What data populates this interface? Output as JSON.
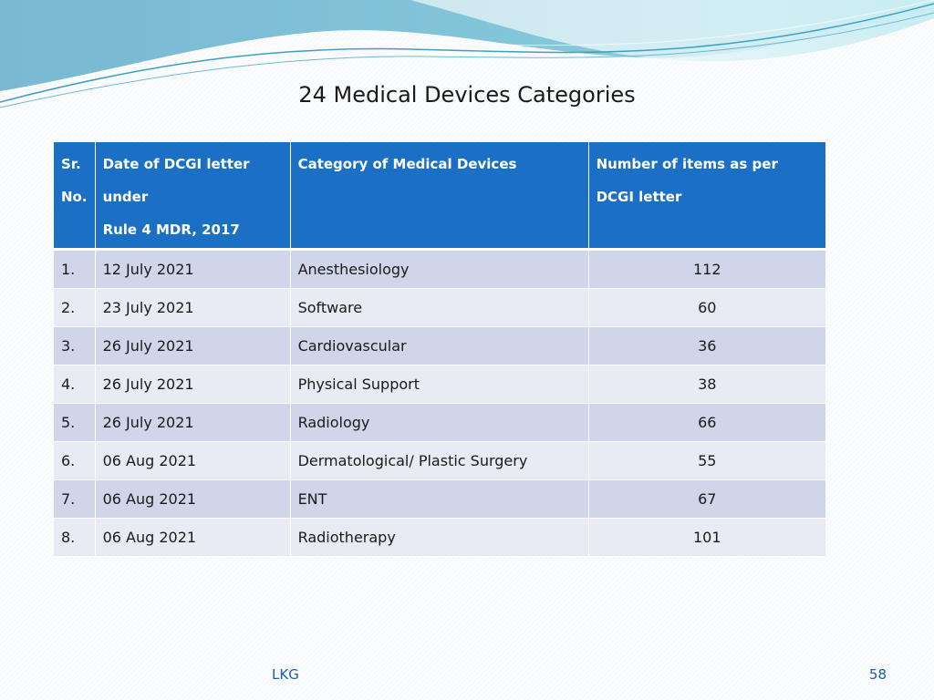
{
  "slide": {
    "title": "24 Medical Devices Categories"
  },
  "table": {
    "headers": {
      "sr_line1": "Sr.",
      "sr_line2": "No.",
      "date_line1": "Date of DCGI letter under",
      "date_line2": "Rule 4 MDR, 2017",
      "category": "Category of Medical Devices",
      "items_line1": "Number of items as per",
      "items_line2": "DCGI letter"
    },
    "rows": [
      {
        "sr": "1.",
        "date": "12 July 2021",
        "category": "Anesthesiology",
        "items": "112"
      },
      {
        "sr": "2.",
        "date": "23 July 2021",
        "category": "Software",
        "items": "60"
      },
      {
        "sr": "3.",
        "date": "26 July 2021",
        "category": "Cardiovascular",
        "items": "36"
      },
      {
        "sr": "4.",
        "date": "26 July 2021",
        "category": "Physical Support",
        "items": "38"
      },
      {
        "sr": "5.",
        "date": "26 July 2021",
        "category": "Radiology",
        "items": "66"
      },
      {
        "sr": "6.",
        "date": "06 Aug 2021",
        "category": "Dermatological/ Plastic Surgery",
        "items": "55"
      },
      {
        "sr": "7.",
        "date": "06 Aug 2021",
        "category": "ENT",
        "items": "67"
      },
      {
        "sr": "8.",
        "date": "06 Aug 2021",
        "category": "Radiotherapy",
        "items": "101"
      }
    ]
  },
  "footer": {
    "author": "LKG",
    "page_number": "58"
  },
  "colors": {
    "header_bg": "#1b70c6",
    "row_odd": "#cfd6e9",
    "row_even": "#e8ebf4",
    "footer_text": "#1b5fa8"
  }
}
